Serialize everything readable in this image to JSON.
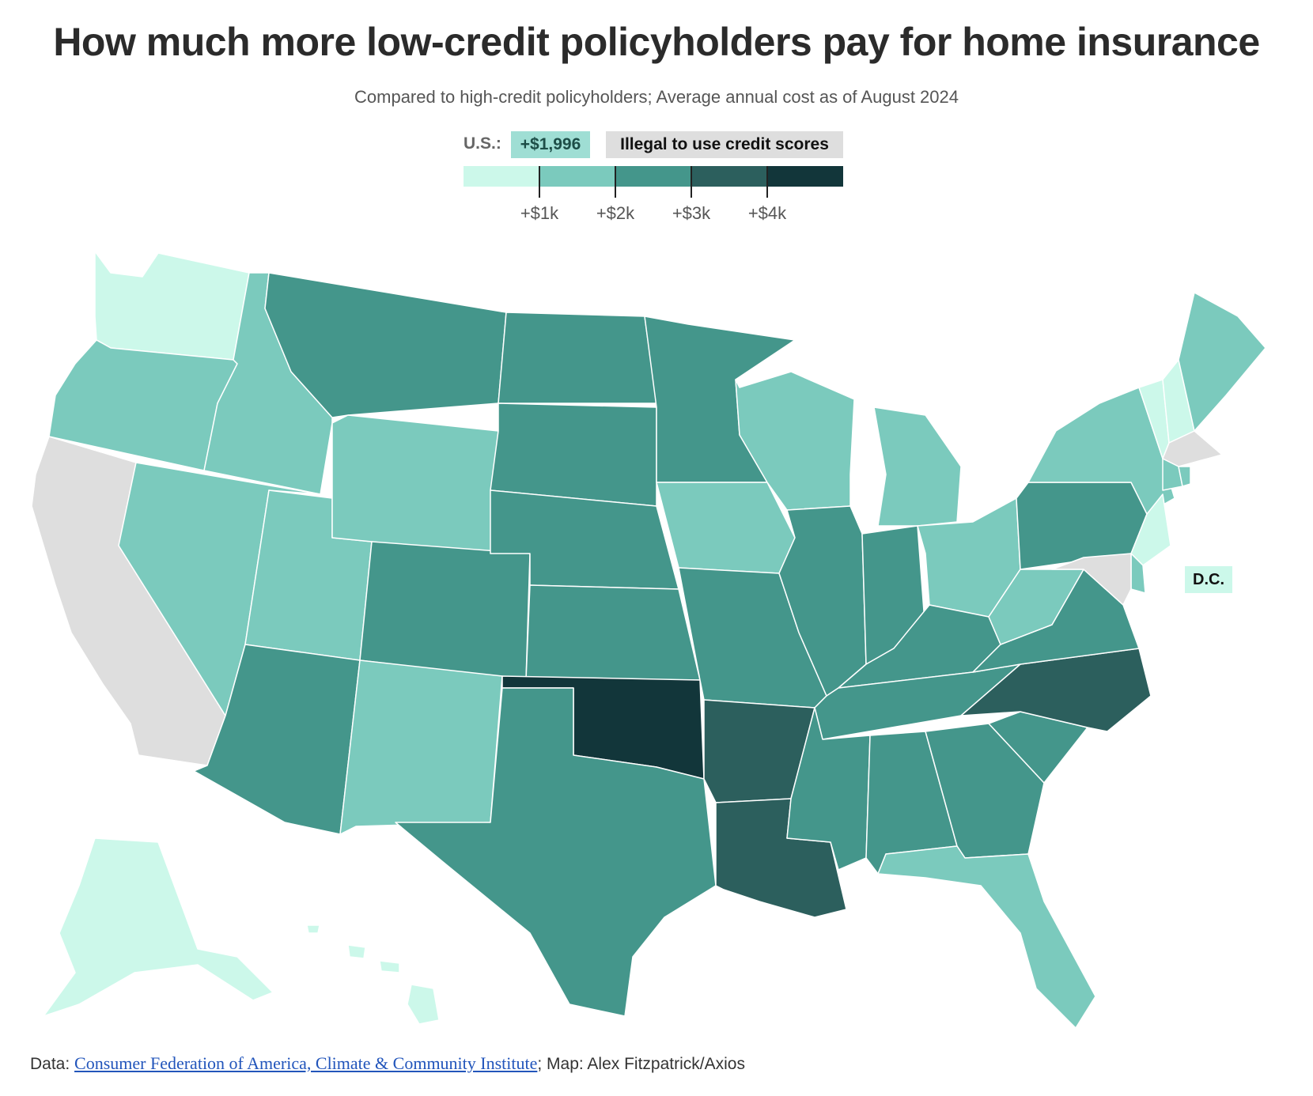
{
  "title": "How much more low-credit policyholders pay for home insurance",
  "subtitle": "Compared to high-credit policyholders; Average annual cost as of August 2024",
  "legend": {
    "us_label": "U.S.:",
    "us_value": "+$1,996",
    "illegal_label": "Illegal to use credit scores",
    "bins": [
      "#ccf8ea",
      "#7bcabd",
      "#44968b",
      "#2c5f5d",
      "#12363a"
    ],
    "ticks": [
      "+$1k",
      "+$2k",
      "+$3k",
      "+$4k"
    ]
  },
  "dc_label": "D.C.",
  "source": {
    "prefix": "Data: ",
    "link_text": "Consumer Federation of America, Climate & Community Institute",
    "suffix": "; Map: Alex Fitzpatrick/Axios"
  },
  "colors": {
    "lightest": "#ccf8ea",
    "light": "#7bcabd",
    "mid": "#44968b",
    "dark": "#2c5f5d",
    "darkest": "#12363a",
    "illegal": "#dedede"
  },
  "states": [
    {
      "name": "WA",
      "bin": 0
    },
    {
      "name": "OR",
      "bin": 1
    },
    {
      "name": "CA",
      "bin": -1
    },
    {
      "name": "ID",
      "bin": 1
    },
    {
      "name": "NV",
      "bin": 1
    },
    {
      "name": "UT",
      "bin": 1
    },
    {
      "name": "AZ",
      "bin": 2
    },
    {
      "name": "MT",
      "bin": 2
    },
    {
      "name": "WY",
      "bin": 1
    },
    {
      "name": "CO",
      "bin": 2
    },
    {
      "name": "NM",
      "bin": 1
    },
    {
      "name": "ND",
      "bin": 2
    },
    {
      "name": "SD",
      "bin": 2
    },
    {
      "name": "NE",
      "bin": 2
    },
    {
      "name": "KS",
      "bin": 2
    },
    {
      "name": "OK",
      "bin": 4
    },
    {
      "name": "TX",
      "bin": 2
    },
    {
      "name": "MN",
      "bin": 2
    },
    {
      "name": "IA",
      "bin": 1
    },
    {
      "name": "MO",
      "bin": 2
    },
    {
      "name": "AR",
      "bin": 3
    },
    {
      "name": "LA",
      "bin": 3
    },
    {
      "name": "WI",
      "bin": 1
    },
    {
      "name": "IL",
      "bin": 2
    },
    {
      "name": "MI",
      "bin": 1
    },
    {
      "name": "IN",
      "bin": 2
    },
    {
      "name": "OH",
      "bin": 1
    },
    {
      "name": "KY",
      "bin": 2
    },
    {
      "name": "TN",
      "bin": 2
    },
    {
      "name": "MS",
      "bin": 2
    },
    {
      "name": "AL",
      "bin": 2
    },
    {
      "name": "GA",
      "bin": 2
    },
    {
      "name": "FL",
      "bin": 1
    },
    {
      "name": "SC",
      "bin": 2
    },
    {
      "name": "NC",
      "bin": 3
    },
    {
      "name": "VA",
      "bin": 2
    },
    {
      "name": "WV",
      "bin": 1
    },
    {
      "name": "PA",
      "bin": 2
    },
    {
      "name": "NY",
      "bin": 1
    },
    {
      "name": "VT",
      "bin": 0
    },
    {
      "name": "NH",
      "bin": 0
    },
    {
      "name": "ME",
      "bin": 1
    },
    {
      "name": "MA",
      "bin": -1
    },
    {
      "name": "CT",
      "bin": 1
    },
    {
      "name": "RI",
      "bin": 1
    },
    {
      "name": "NJ",
      "bin": 0
    },
    {
      "name": "DE",
      "bin": 1
    },
    {
      "name": "MD",
      "bin": -1
    },
    {
      "name": "AK",
      "bin": 0
    },
    {
      "name": "HI",
      "bin": 0
    },
    {
      "name": "DC",
      "bin": 0
    }
  ]
}
